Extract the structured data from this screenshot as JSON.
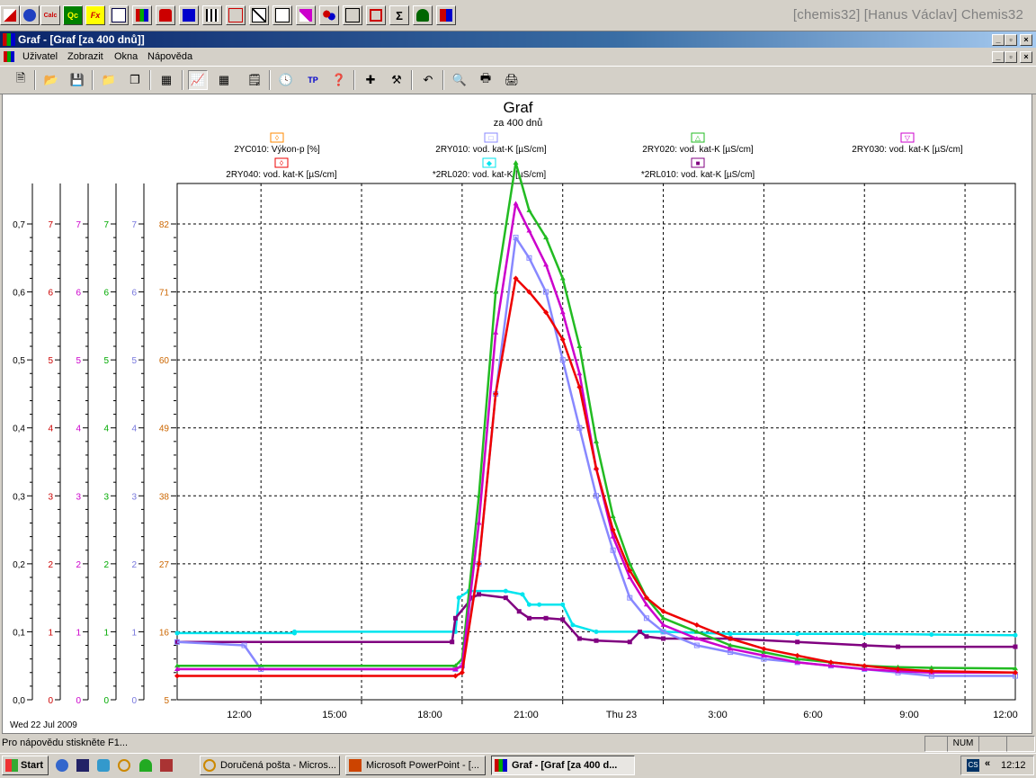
{
  "app_title": "[chemis32] [Hanus Václav]   Chemis32",
  "app_toolbar_labels": {
    "qc": "Qc",
    "fx": "Fx",
    "calc": "Calc"
  },
  "window_title": "Graf - [Graf [za 400 dnů]]",
  "menu": [
    "Uživatel",
    "Zobrazit",
    "Okna",
    "Nápověda"
  ],
  "chart_data": {
    "type": "line",
    "title": "Graf",
    "subtitle": "za 400 dnů",
    "date_label": "Wed 22 Jul 2009",
    "x_ticks": [
      "12:00",
      "15:00",
      "18:00",
      "21:00",
      "Thu 23",
      "3:00",
      "6:00",
      "9:00",
      "12:00"
    ],
    "x_range_hours": [
      9.5,
      34.5
    ],
    "y_axes": [
      {
        "color": "#000000",
        "ticks": [
          "0,0",
          "0,1",
          "0,2",
          "0,3",
          "0,4",
          "0,5",
          "0,6",
          "0,7"
        ],
        "range": [
          0,
          0.7
        ]
      },
      {
        "color": "#cc0000",
        "ticks": [
          "0",
          "1",
          "2",
          "3",
          "4",
          "5",
          "6",
          "7"
        ],
        "range": [
          0,
          7
        ]
      },
      {
        "color": "#cc00cc",
        "ticks": [
          "0",
          "1",
          "2",
          "3",
          "4",
          "5",
          "6",
          "7"
        ],
        "range": [
          0,
          7
        ]
      },
      {
        "color": "#00aa00",
        "ticks": [
          "0",
          "1",
          "2",
          "3",
          "4",
          "5",
          "6",
          "7"
        ],
        "range": [
          0,
          7
        ]
      },
      {
        "color": "#7777dd",
        "ticks": [
          "0",
          "1",
          "2",
          "3",
          "4",
          "5",
          "6",
          "7"
        ],
        "range": [
          0,
          7
        ]
      },
      {
        "color": "#cc6600",
        "ticks": [
          "5",
          "16",
          "27",
          "38",
          "49",
          "60",
          "71",
          "82"
        ],
        "range": [
          5,
          82
        ]
      }
    ],
    "legend": [
      {
        "name": "2YC010: Výkon-p [%]",
        "color": "#ff8800",
        "marker": "◊"
      },
      {
        "name": "2RY010: vod. kat-K [µS/cm]",
        "color": "#8888ff",
        "marker": "□"
      },
      {
        "name": "2RY020: vod. kat-K [µS/cm]",
        "color": "#22bb22",
        "marker": "△"
      },
      {
        "name": "2RY030: vod. kat-K [µS/cm]",
        "color": "#cc00cc",
        "marker": "▽"
      },
      {
        "name": "2RY040: vod. kat-K [µS/cm]",
        "color": "#ee0000",
        "marker": "◊"
      },
      {
        "name": "*2RL020: vod. kat-K [µS/cm]",
        "color": "#00e5ee",
        "marker": "◆"
      },
      {
        "name": "*2RL010: vod. kat-K [µS/cm]",
        "color": "#800080",
        "marker": "■"
      }
    ],
    "series": [
      {
        "name": "2RL020",
        "color": "#00e5ee",
        "x": [
          9.5,
          13,
          13,
          17.8,
          17.9,
          18.2,
          19.3,
          19.8,
          20,
          20.3,
          21,
          21.3,
          22,
          24,
          26,
          28,
          30,
          32,
          34.5
        ],
        "y": [
          0.098,
          0.098,
          0.1,
          0.1,
          0.15,
          0.16,
          0.16,
          0.155,
          0.14,
          0.14,
          0.14,
          0.11,
          0.1,
          0.1,
          0.097,
          0.097,
          0.097,
          0.096,
          0.095
        ]
      },
      {
        "name": "2RL010",
        "color": "#800080",
        "x": [
          9.5,
          17.7,
          17.8,
          18.3,
          18.5,
          19.3,
          19.7,
          20,
          20.5,
          21,
          21.5,
          22,
          23,
          23.3,
          23.5,
          24,
          26,
          28,
          30,
          31,
          34.5
        ],
        "y": [
          0.085,
          0.085,
          0.12,
          0.15,
          0.155,
          0.15,
          0.13,
          0.12,
          0.12,
          0.118,
          0.09,
          0.087,
          0.085,
          0.1,
          0.093,
          0.09,
          0.09,
          0.085,
          0.08,
          0.078,
          0.078
        ]
      },
      {
        "name": "2RY010",
        "color": "#8888ff",
        "x": [
          9.5,
          11.5,
          12,
          17.8,
          18,
          18.5,
          19,
          19.6,
          20,
          20.5,
          21,
          21.5,
          22,
          22.5,
          23,
          23.5,
          24,
          25,
          26,
          27,
          28,
          29,
          30,
          31,
          32,
          34.5
        ],
        "y": [
          0.085,
          0.08,
          0.045,
          0.045,
          0.05,
          0.2,
          0.45,
          0.68,
          0.65,
          0.6,
          0.5,
          0.4,
          0.3,
          0.22,
          0.15,
          0.12,
          0.1,
          0.08,
          0.07,
          0.06,
          0.055,
          0.05,
          0.045,
          0.04,
          0.035,
          0.035
        ]
      },
      {
        "name": "2RY020",
        "color": "#22bb22",
        "x": [
          9.5,
          17.8,
          18,
          18.5,
          19,
          19.6,
          20,
          20.5,
          21,
          21.5,
          22,
          22.5,
          23,
          23.5,
          24,
          25,
          26,
          27,
          28,
          29,
          30,
          31,
          32,
          34.5
        ],
        "y": [
          0.05,
          0.05,
          0.06,
          0.3,
          0.6,
          0.79,
          0.72,
          0.68,
          0.62,
          0.52,
          0.38,
          0.27,
          0.2,
          0.15,
          0.12,
          0.1,
          0.08,
          0.07,
          0.06,
          0.055,
          0.05,
          0.048,
          0.047,
          0.046
        ]
      },
      {
        "name": "2RY030",
        "color": "#cc00cc",
        "x": [
          9.5,
          17.8,
          18,
          18.5,
          19,
          19.6,
          20,
          20.5,
          21,
          21.5,
          22,
          22.5,
          23,
          23.5,
          24,
          25,
          26,
          27,
          28,
          29,
          30,
          31,
          32,
          34.5
        ],
        "y": [
          0.045,
          0.045,
          0.05,
          0.26,
          0.54,
          0.73,
          0.69,
          0.64,
          0.57,
          0.48,
          0.34,
          0.24,
          0.18,
          0.14,
          0.11,
          0.09,
          0.075,
          0.065,
          0.055,
          0.05,
          0.045,
          0.042,
          0.04,
          0.04
        ]
      },
      {
        "name": "2RY040",
        "color": "#ee0000",
        "x": [
          9.5,
          17.8,
          18,
          18.5,
          19,
          19.6,
          20,
          20.5,
          21,
          21.5,
          22,
          22.5,
          23,
          23.5,
          24,
          25,
          26,
          27,
          28,
          29,
          30,
          31,
          32,
          34.5
        ],
        "y": [
          0.035,
          0.035,
          0.04,
          0.2,
          0.45,
          0.62,
          0.6,
          0.57,
          0.53,
          0.46,
          0.34,
          0.25,
          0.19,
          0.15,
          0.13,
          0.11,
          0.09,
          0.075,
          0.065,
          0.055,
          0.05,
          0.045,
          0.042,
          0.04
        ]
      }
    ]
  },
  "status": {
    "hint": "Pro nápovědu stiskněte F1...",
    "num": "NUM"
  },
  "taskbar": {
    "start": "Start",
    "tasks": [
      "Doručená pošta - Micros...",
      "Microsoft PowerPoint - [...",
      "Graf - [Graf [za 400 d..."
    ],
    "lang": "CS",
    "clock": "12:12"
  }
}
